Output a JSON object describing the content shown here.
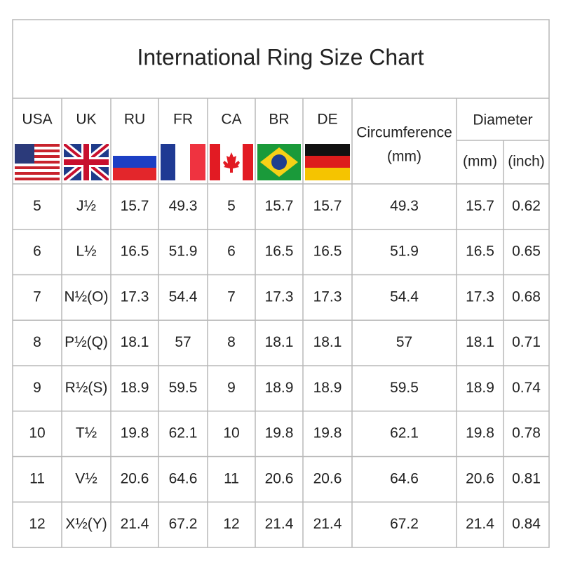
{
  "header": {
    "title": "International Ring Size Chart"
  },
  "table": {
    "columns": [
      "USA",
      "UK",
      "RU",
      "FR",
      "CA",
      "BR",
      "DE"
    ],
    "circumference": [
      "Circumference",
      "(mm)"
    ],
    "diameter": {
      "label": "Diameter",
      "units": [
        "(mm)",
        "(inch)"
      ]
    },
    "rows": [
      [
        5,
        "J½",
        15.7,
        49.3,
        5,
        15.7,
        15.7,
        49.3,
        15.7,
        0.62
      ],
      [
        6,
        "L½",
        16.5,
        51.9,
        6,
        16.5,
        16.5,
        51.9,
        16.5,
        0.65
      ],
      [
        7,
        "N½(O)",
        17.3,
        54.4,
        7,
        17.3,
        17.3,
        54.4,
        17.3,
        0.68
      ],
      [
        8,
        "P½(Q)",
        18.1,
        57,
        8,
        18.1,
        18.1,
        57,
        18.1,
        0.71
      ],
      [
        9,
        "R½(S)",
        18.9,
        59.5,
        9,
        18.9,
        18.9,
        59.5,
        18.9,
        0.74
      ],
      [
        10,
        "T½",
        19.8,
        62.1,
        10,
        19.8,
        19.8,
        62.1,
        19.8,
        0.78
      ],
      [
        11,
        "V½",
        20.6,
        64.6,
        11,
        20.6,
        20.6,
        64.6,
        20.6,
        0.81
      ],
      [
        12,
        "X½(Y)",
        21.4,
        67.2,
        12,
        21.4,
        21.4,
        67.2,
        21.4,
        0.84
      ]
    ]
  }
}
